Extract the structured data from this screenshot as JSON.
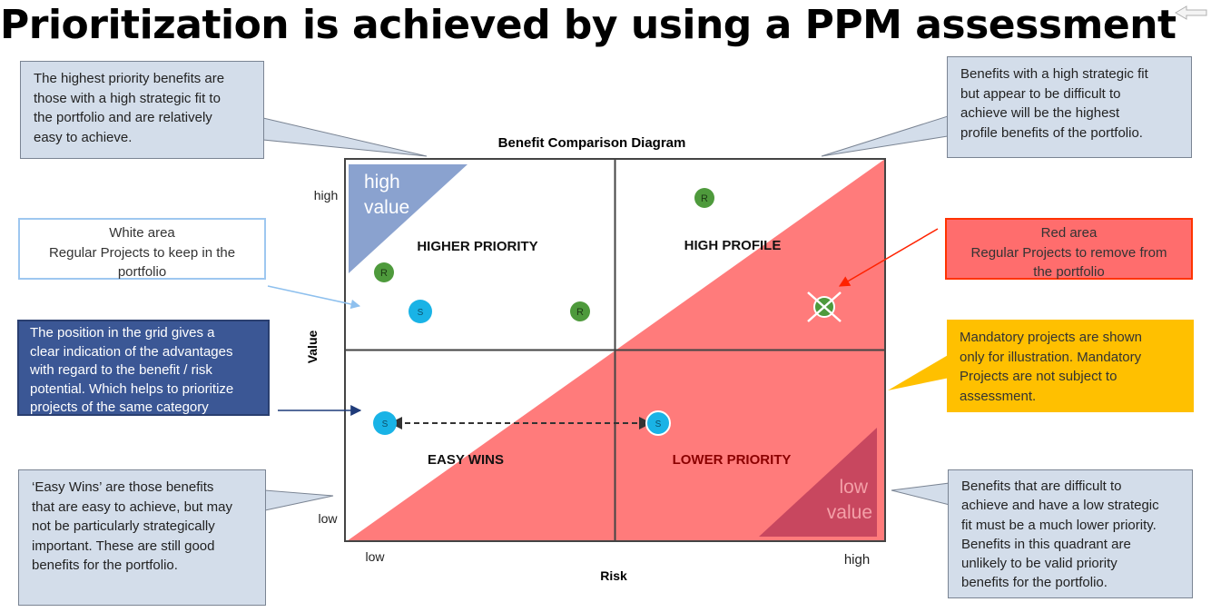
{
  "slide": {
    "title": "Prioritization is achieved by using a PPM assessment"
  },
  "diagram": {
    "title": "Benefit Comparison Diagram",
    "y_axis": {
      "label": "Value",
      "low": "low",
      "high": "high"
    },
    "x_axis": {
      "label": "Risk",
      "low": "low",
      "high": "high"
    },
    "quadrants": {
      "top_left": "HIGHER PRIORITY",
      "top_right": "HIGH PROFILE",
      "bottom_left": "EASY WINS",
      "bottom_right": "LOWER PRIORITY"
    },
    "corner_labels": {
      "high_value": [
        "high",
        "value"
      ],
      "low_value": [
        "low",
        "value"
      ]
    },
    "markers": [
      {
        "label": "R",
        "kind": "regular",
        "color": "#4e9a3c"
      },
      {
        "label": "S",
        "kind": "strategic",
        "color": "#19b3e6"
      },
      {
        "label": "R",
        "kind": "regular",
        "color": "#4e9a3c"
      },
      {
        "label": "R",
        "kind": "regular",
        "color": "#4e9a3c"
      },
      {
        "label": "S",
        "kind": "strategic",
        "color": "#19b3e6"
      },
      {
        "label": "S",
        "kind": "strategic",
        "color": "#19b3e6"
      }
    ],
    "colors": {
      "red_area": "#ff7b7b",
      "high_value_triangle": "#8aa2cf",
      "low_value_triangle": "#c8475f",
      "grid_border": "#444444"
    }
  },
  "callouts": {
    "top_left": [
      "The highest priority benefits are",
      "those with a high strategic fit to",
      "the portfolio and are relatively",
      "easy to achieve."
    ],
    "top_right": [
      "Benefits with a high strategic fit",
      "but appear to be difficult to",
      "achieve will be the highest",
      "profile benefits of the portfolio."
    ],
    "white_area": [
      "White area",
      "Regular Projects to keep in the",
      "portfolio"
    ],
    "position": [
      "The position in the grid gives a",
      "clear indication of the advantages",
      "with regard to the benefit / risk",
      "potential. Which helps to prioritize",
      "projects of the same category"
    ],
    "red_area": [
      "Red area",
      "Regular Projects to remove from",
      "the portfolio"
    ],
    "mandatory": [
      "Mandatory projects are shown",
      "only for illustration. Mandatory",
      "Projects are not subject to",
      "assessment."
    ],
    "easy_wins": [
      "‘Easy Wins’ are those benefits",
      "that are easy to achieve, but may",
      "not be particularly strategically",
      "important. These are still good",
      "benefits for the portfolio."
    ],
    "lower_priority": [
      "Benefits that are difficult to",
      "achieve and have a low strategic",
      "fit must be a much lower priority.",
      "Benefits in this quadrant are",
      "unlikely to be valid priority",
      "benefits for the portfolio."
    ]
  }
}
